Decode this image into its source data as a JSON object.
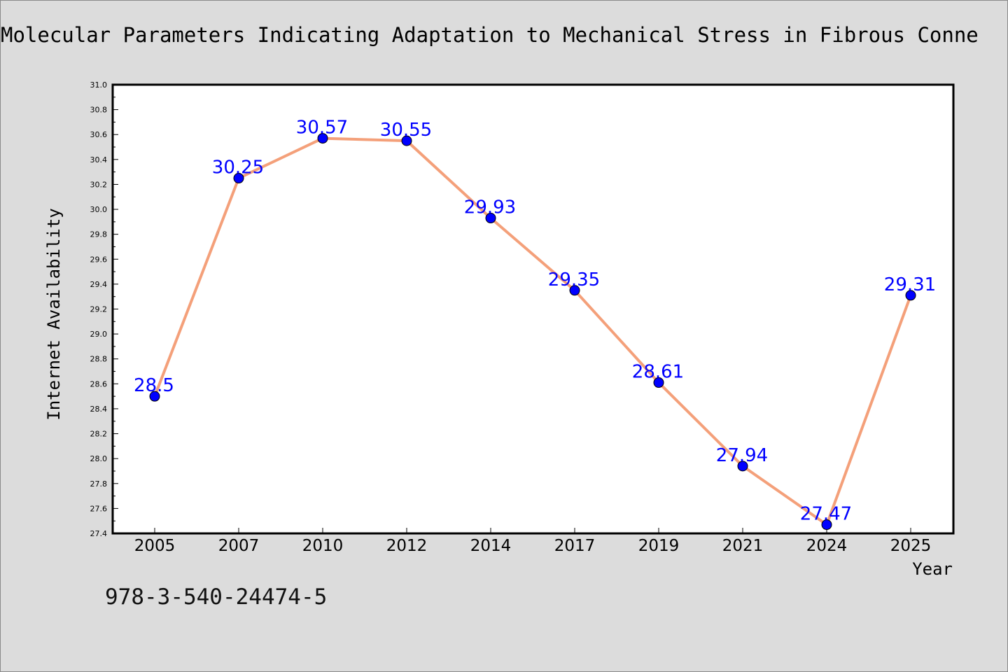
{
  "chart_data": {
    "type": "line",
    "title": "Molecular Parameters Indicating Adaptation to Mechanical Stress in Fibrous Conne",
    "xlabel": "Year",
    "ylabel": "Internet Availability",
    "categories": [
      "2005",
      "2007",
      "2010",
      "2012",
      "2014",
      "2017",
      "2019",
      "2021",
      "2024",
      "2025"
    ],
    "series": [
      {
        "values": [
          28.5,
          30.25,
          30.57,
          30.55,
          29.93,
          29.35,
          28.61,
          27.94,
          27.47,
          29.31
        ],
        "data_labels": [
          "28.5",
          "30.25",
          "30.57",
          "30.55",
          "29.93",
          "29.35",
          "28.61",
          "27.94",
          "27.47",
          "29.31"
        ]
      }
    ],
    "ylim": [
      27.4,
      31.0
    ],
    "yticks": [
      "27.4",
      "27.6",
      "27.8",
      "28.0",
      "28.2",
      "28.4",
      "28.6",
      "28.8",
      "29.0",
      "29.2",
      "29.4",
      "29.6",
      "29.8",
      "30.0",
      "30.2",
      "30.4",
      "30.6",
      "30.8",
      "31.0"
    ],
    "grid": false,
    "legend": "none",
    "colors": {
      "line": "#f4a07a",
      "marker": "#0000ff",
      "data_label": "#0000ff",
      "background": "#dcdcdc",
      "plot_area": "#ffffff"
    }
  },
  "footer": {
    "isbn": "978-3-540-24474-5"
  }
}
